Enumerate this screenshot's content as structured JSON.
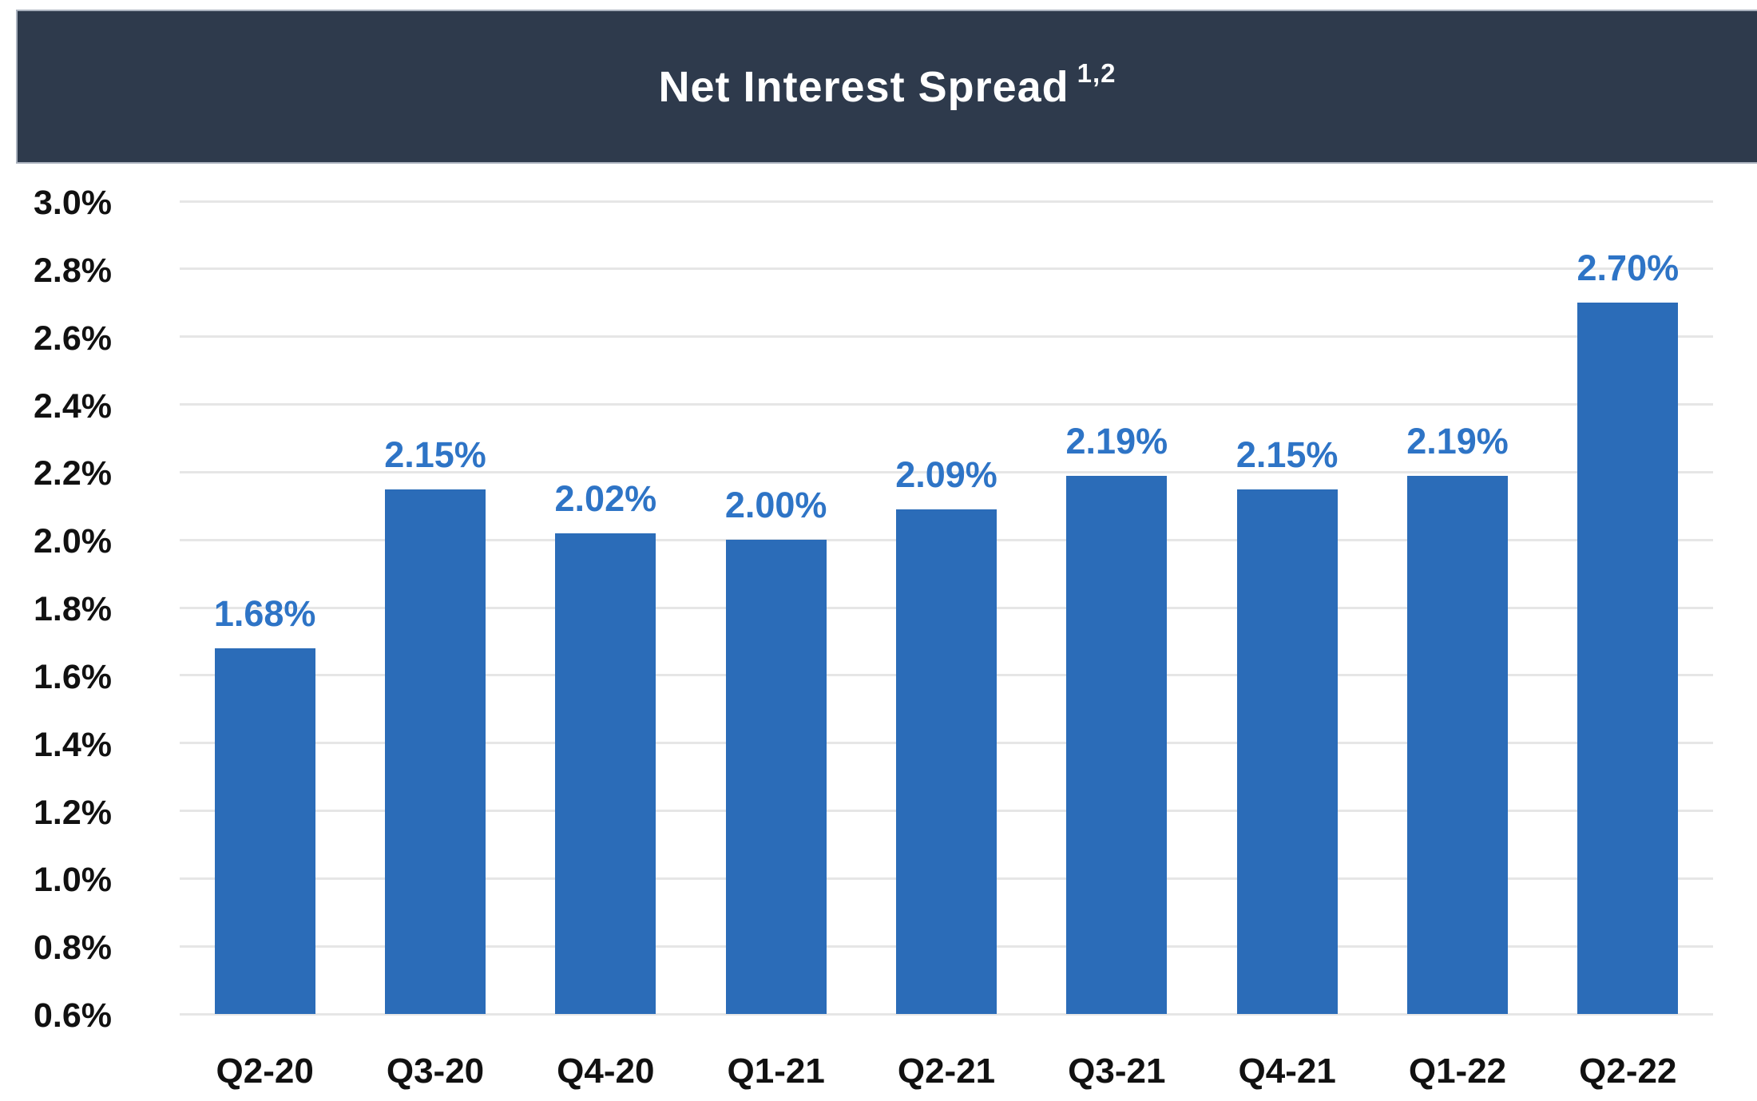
{
  "header": {
    "title": "Net Interest Spread",
    "superscript": "1,2"
  },
  "chart_data": {
    "type": "bar",
    "title": "Net Interest Spread 1,2",
    "categories": [
      "Q2-20",
      "Q3-20",
      "Q4-20",
      "Q1-21",
      "Q2-21",
      "Q3-21",
      "Q4-21",
      "Q1-22",
      "Q2-22"
    ],
    "values": [
      1.68,
      2.15,
      2.02,
      2.0,
      2.09,
      2.19,
      2.15,
      2.19,
      2.7
    ],
    "data_labels": [
      "1.68%",
      "2.15%",
      "2.02%",
      "2.00%",
      "2.09%",
      "2.19%",
      "2.15%",
      "2.19%",
      "2.70%"
    ],
    "xlabel": "",
    "ylabel": "",
    "ylim": [
      0.6,
      3.0
    ],
    "ytick_step": 0.2,
    "ytick_labels": [
      "3.0%",
      "2.8%",
      "2.6%",
      "2.4%",
      "2.2%",
      "2.0%",
      "1.8%",
      "1.6%",
      "1.4%",
      "1.2%",
      "1.0%",
      "0.8%",
      "0.6%"
    ],
    "grid": true,
    "legend": false,
    "colors": {
      "bar": "#2B6CB8",
      "data_label": "#2E74C6",
      "header_bg": "#2E3A4C",
      "header_border": "#A9B1BD",
      "header_text": "#FFFFFF",
      "axis_text": "#111111",
      "gridline": "#E6E6E6"
    }
  }
}
